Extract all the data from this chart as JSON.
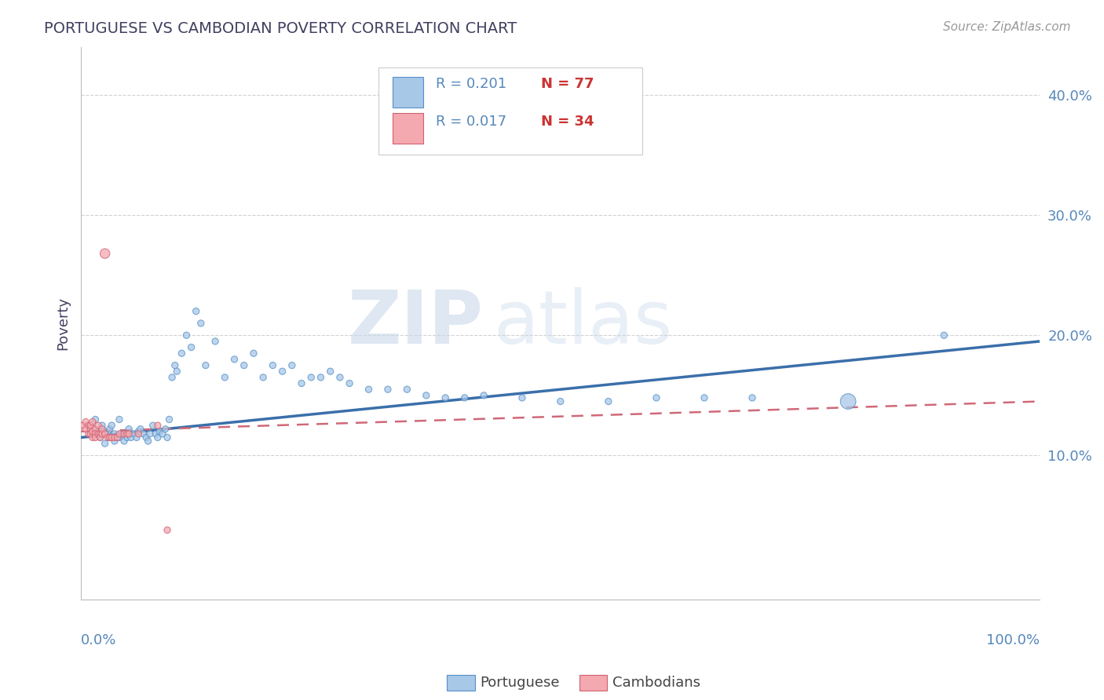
{
  "title": "PORTUGUESE VS CAMBODIAN POVERTY CORRELATION CHART",
  "source": "Source: ZipAtlas.com",
  "ylabel": "Poverty",
  "legend_label1": "Portuguese",
  "legend_label2": "Cambodians",
  "watermark_zip": "ZIP",
  "watermark_atlas": "atlas",
  "blue_scatter_color": "#a8c8e8",
  "blue_scatter_edge": "#5590c8",
  "pink_scatter_color": "#f4a8b0",
  "pink_scatter_edge": "#d06070",
  "blue_line_color": "#3a6faa",
  "pink_line_color": "#d06878",
  "title_color": "#404060",
  "axis_label_color": "#5588bb",
  "background_color": "#ffffff",
  "grid_color": "#cccccc",
  "legend_r_color": "#5588bb",
  "legend_n_color": "#cc3333",
  "xtick_left": "0.0%",
  "xtick_right": "100.0%",
  "ytick_labels": [
    "10.0%",
    "20.0%",
    "30.0%",
    "40.0%"
  ],
  "ytick_vals": [
    0.1,
    0.2,
    0.3,
    0.4
  ],
  "xlim": [
    0.0,
    1.0
  ],
  "ylim": [
    -0.02,
    0.44
  ],
  "port_x": [
    0.01,
    0.015,
    0.018,
    0.02,
    0.022,
    0.025,
    0.025,
    0.028,
    0.03,
    0.03,
    0.032,
    0.035,
    0.035,
    0.038,
    0.04,
    0.04,
    0.042,
    0.045,
    0.048,
    0.05,
    0.05,
    0.052,
    0.055,
    0.058,
    0.06,
    0.062,
    0.065,
    0.068,
    0.07,
    0.072,
    0.075,
    0.078,
    0.08,
    0.082,
    0.085,
    0.088,
    0.09,
    0.092,
    0.095,
    0.098,
    0.1,
    0.105,
    0.11,
    0.115,
    0.12,
    0.125,
    0.13,
    0.14,
    0.15,
    0.16,
    0.17,
    0.18,
    0.19,
    0.2,
    0.21,
    0.22,
    0.23,
    0.24,
    0.25,
    0.26,
    0.27,
    0.28,
    0.3,
    0.32,
    0.34,
    0.36,
    0.38,
    0.4,
    0.42,
    0.46,
    0.5,
    0.55,
    0.6,
    0.65,
    0.7,
    0.8,
    0.9
  ],
  "port_y": [
    0.125,
    0.13,
    0.12,
    0.115,
    0.125,
    0.11,
    0.12,
    0.118,
    0.115,
    0.122,
    0.125,
    0.118,
    0.112,
    0.115,
    0.13,
    0.115,
    0.118,
    0.112,
    0.115,
    0.118,
    0.122,
    0.115,
    0.118,
    0.115,
    0.12,
    0.122,
    0.118,
    0.115,
    0.112,
    0.118,
    0.125,
    0.118,
    0.115,
    0.12,
    0.118,
    0.122,
    0.115,
    0.13,
    0.165,
    0.175,
    0.17,
    0.185,
    0.2,
    0.19,
    0.22,
    0.21,
    0.175,
    0.195,
    0.165,
    0.18,
    0.175,
    0.185,
    0.165,
    0.175,
    0.17,
    0.175,
    0.16,
    0.165,
    0.165,
    0.17,
    0.165,
    0.16,
    0.155,
    0.155,
    0.155,
    0.15,
    0.148,
    0.148,
    0.15,
    0.148,
    0.145,
    0.145,
    0.148,
    0.148,
    0.148,
    0.145,
    0.2
  ],
  "port_s": [
    35,
    35,
    35,
    35,
    35,
    35,
    35,
    35,
    35,
    35,
    35,
    35,
    35,
    35,
    35,
    35,
    35,
    35,
    35,
    35,
    35,
    35,
    35,
    35,
    35,
    35,
    35,
    35,
    35,
    35,
    35,
    35,
    35,
    35,
    35,
    35,
    35,
    35,
    35,
    35,
    35,
    35,
    35,
    35,
    35,
    35,
    35,
    35,
    35,
    35,
    35,
    35,
    35,
    35,
    35,
    35,
    35,
    35,
    35,
    35,
    35,
    35,
    35,
    35,
    35,
    35,
    35,
    35,
    35,
    35,
    35,
    35,
    35,
    35,
    35,
    200,
    35
  ],
  "camb_x": [
    0.002,
    0.005,
    0.005,
    0.008,
    0.008,
    0.01,
    0.01,
    0.01,
    0.012,
    0.012,
    0.012,
    0.015,
    0.015,
    0.015,
    0.018,
    0.018,
    0.02,
    0.02,
    0.022,
    0.022,
    0.025,
    0.025,
    0.028,
    0.03,
    0.032,
    0.035,
    0.038,
    0.04,
    0.045,
    0.048,
    0.05,
    0.06,
    0.08,
    0.09
  ],
  "camb_y": [
    0.125,
    0.128,
    0.122,
    0.118,
    0.125,
    0.122,
    0.118,
    0.125,
    0.12,
    0.128,
    0.115,
    0.122,
    0.118,
    0.115,
    0.118,
    0.125,
    0.118,
    0.115,
    0.118,
    0.122,
    0.118,
    0.268,
    0.115,
    0.115,
    0.115,
    0.115,
    0.115,
    0.118,
    0.118,
    0.118,
    0.118,
    0.118,
    0.125,
    0.038
  ],
  "camb_s": [
    35,
    35,
    35,
    35,
    35,
    35,
    35,
    35,
    35,
    35,
    35,
    35,
    35,
    35,
    35,
    35,
    35,
    35,
    35,
    35,
    35,
    80,
    35,
    35,
    35,
    35,
    35,
    35,
    35,
    35,
    35,
    35,
    35,
    35
  ],
  "port_line_x0": 0.0,
  "port_line_y0": 0.115,
  "port_line_x1": 1.0,
  "port_line_y1": 0.195,
  "camb_line_x0": 0.0,
  "camb_line_y0": 0.12,
  "camb_line_x1": 1.0,
  "camb_line_y1": 0.145
}
